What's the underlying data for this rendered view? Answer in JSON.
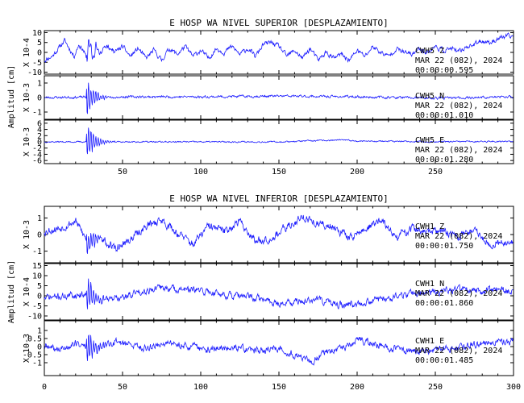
{
  "chart_data": [
    {
      "type": "line",
      "title": "E HOSP WA NIVEL SUPERIOR [DESPLAZAMIENTO]",
      "ylabel": "Amplitud [cm]",
      "xlim": [
        0,
        300
      ],
      "x_ticks": [
        "50",
        "100",
        "150",
        "200",
        "250"
      ],
      "grid": false,
      "channels": [
        {
          "exponent": "X 10-4",
          "y_ticks": [
            "10",
            "5",
            "0",
            "-5",
            "-10"
          ],
          "ylim": [
            -11,
            11
          ],
          "ann_channel": "CWH5   Z",
          "ann_date": "MAR 22 (082), 2024",
          "ann_time": "00:00:00.595",
          "envelope": [
            [
              0,
              -4
            ],
            [
              5,
              -2
            ],
            [
              10,
              3
            ],
            [
              13,
              6
            ],
            [
              16,
              2
            ],
            [
              19,
              -2
            ],
            [
              22,
              4
            ],
            [
              25,
              1
            ],
            [
              27,
              -3
            ],
            [
              29,
              6
            ],
            [
              31,
              -4
            ],
            [
              33,
              3
            ],
            [
              36,
              -1
            ],
            [
              40,
              4
            ],
            [
              45,
              0
            ],
            [
              50,
              3
            ],
            [
              55,
              -2
            ],
            [
              60,
              2
            ],
            [
              65,
              -3
            ],
            [
              70,
              1
            ],
            [
              75,
              -4
            ],
            [
              80,
              2
            ],
            [
              85,
              -1
            ],
            [
              90,
              3
            ],
            [
              95,
              -2
            ],
            [
              100,
              1
            ],
            [
              105,
              -3
            ],
            [
              110,
              2
            ],
            [
              115,
              0
            ],
            [
              120,
              3
            ],
            [
              125,
              -1
            ],
            [
              130,
              2
            ],
            [
              135,
              -2
            ],
            [
              140,
              4
            ],
            [
              145,
              5
            ],
            [
              150,
              3
            ],
            [
              155,
              -2
            ],
            [
              160,
              1
            ],
            [
              165,
              -3
            ],
            [
              170,
              2
            ],
            [
              175,
              -4
            ],
            [
              180,
              0
            ],
            [
              185,
              -3
            ],
            [
              190,
              -1
            ],
            [
              195,
              -4
            ],
            [
              200,
              1
            ],
            [
              205,
              -2
            ],
            [
              210,
              3
            ],
            [
              215,
              0
            ],
            [
              220,
              -2
            ],
            [
              225,
              2
            ],
            [
              230,
              0
            ],
            [
              235,
              -1
            ],
            [
              240,
              2
            ],
            [
              245,
              0
            ],
            [
              250,
              3
            ],
            [
              255,
              1
            ],
            [
              260,
              2
            ],
            [
              265,
              0
            ],
            [
              270,
              3
            ],
            [
              275,
              4
            ],
            [
              280,
              6
            ],
            [
              285,
              5
            ],
            [
              290,
              7
            ],
            [
              295,
              8
            ],
            [
              300,
              8
            ]
          ],
          "noise": 2.2,
          "burst_amp": 4,
          "seed": 11
        },
        {
          "exponent": "X 10-3",
          "y_ticks": [
            "1",
            "0",
            "-1"
          ],
          "ylim": [
            -1.5,
            1.5
          ],
          "ann_channel": "CWH5   N",
          "ann_date": "MAR 22 (082), 2024",
          "ann_time": "00:00:01.010",
          "envelope": [
            [
              0,
              0
            ],
            [
              50,
              0.05
            ],
            [
              100,
              0.05
            ],
            [
              150,
              0.1
            ],
            [
              200,
              0.05
            ],
            [
              250,
              -0.05
            ],
            [
              300,
              0.05
            ]
          ],
          "noise": 0.15,
          "burst_amp": 1.2,
          "seed": 23
        },
        {
          "exponent": "X 10-3",
          "y_ticks": [
            "6",
            "4",
            "2",
            "0",
            "-2",
            "-4",
            "-6"
          ],
          "ylim": [
            -7,
            7
          ],
          "ann_channel": "CWH5   E",
          "ann_date": "MAR 22 (082), 2024",
          "ann_time": "00:00:01.280",
          "envelope": [
            [
              0,
              0
            ],
            [
              50,
              0
            ],
            [
              100,
              0
            ],
            [
              150,
              0
            ],
            [
              190,
              0.6
            ],
            [
              200,
              0.3
            ],
            [
              250,
              0
            ],
            [
              300,
              0.2
            ]
          ],
          "noise": 0.4,
          "burst_amp": 6,
          "seed": 37
        }
      ]
    },
    {
      "type": "line",
      "title": "E HOSP WA NIVEL INFERIOR [DESPLAZAMIENTO]",
      "ylabel": "Amplitud [cm]",
      "xlim": [
        0,
        300
      ],
      "x_ticks": [
        "0",
        "50",
        "100",
        "150",
        "200",
        "250",
        "300"
      ],
      "grid": false,
      "channels": [
        {
          "exponent": "X 10-3",
          "y_ticks": [
            "1",
            "0",
            "-1"
          ],
          "ylim": [
            -1.7,
            1.7
          ],
          "ann_channel": "CWH1   Z",
          "ann_date": "MAR 22 (082), 2024",
          "ann_time": "00:00:01.750",
          "envelope": [
            [
              0,
              0.2
            ],
            [
              10,
              0.4
            ],
            [
              20,
              0.8
            ],
            [
              28,
              -0.5
            ],
            [
              35,
              -0.2
            ],
            [
              45,
              -0.9
            ],
            [
              55,
              -0.3
            ],
            [
              65,
              0.5
            ],
            [
              75,
              0.9
            ],
            [
              85,
              0.1
            ],
            [
              95,
              -0.6
            ],
            [
              105,
              0.5
            ],
            [
              115,
              0.2
            ],
            [
              125,
              0.8
            ],
            [
              135,
              -0.4
            ],
            [
              145,
              -0.2
            ],
            [
              155,
              0.4
            ],
            [
              165,
              1.1
            ],
            [
              175,
              0.6
            ],
            [
              185,
              0.5
            ],
            [
              195,
              -0.2
            ],
            [
              205,
              0.3
            ],
            [
              215,
              0.9
            ],
            [
              225,
              -0.2
            ],
            [
              235,
              0.4
            ],
            [
              245,
              0.1
            ],
            [
              255,
              0.2
            ],
            [
              265,
              -0.1
            ],
            [
              275,
              0.3
            ],
            [
              285,
              -0.6
            ],
            [
              295,
              -0.4
            ],
            [
              300,
              -0.5
            ]
          ],
          "noise": 0.45,
          "burst_amp": 0.8,
          "seed": 53
        },
        {
          "exponent": "X 10-4",
          "y_ticks": [
            "15",
            "10",
            "5",
            "0",
            "-5",
            "-10"
          ],
          "ylim": [
            -12,
            16
          ],
          "ann_channel": "CWH1   N",
          "ann_date": "MAR 22 (082), 2024",
          "ann_time": "00:00:01.860",
          "envelope": [
            [
              0,
              -1
            ],
            [
              15,
              0
            ],
            [
              28,
              1
            ],
            [
              35,
              -2
            ],
            [
              50,
              -1
            ],
            [
              60,
              2
            ],
            [
              75,
              4
            ],
            [
              90,
              3
            ],
            [
              105,
              2
            ],
            [
              120,
              0
            ],
            [
              135,
              -1
            ],
            [
              150,
              -4
            ],
            [
              160,
              -3
            ],
            [
              175,
              -2
            ],
            [
              190,
              -5
            ],
            [
              205,
              -3
            ],
            [
              220,
              -1
            ],
            [
              235,
              1
            ],
            [
              250,
              2
            ],
            [
              265,
              3
            ],
            [
              280,
              2
            ],
            [
              290,
              3
            ],
            [
              300,
              2
            ]
          ],
          "noise": 3.2,
          "burst_amp": 9,
          "seed": 71
        },
        {
          "exponent": "X 10-3",
          "y_ticks": [
            "1",
            "0.5",
            "0",
            "-0.5",
            "-1"
          ],
          "ylim": [
            -1.8,
            1.6
          ],
          "ann_channel": "CWH1   E",
          "ann_date": "MAR 22 (082), 2024",
          "ann_time": "00:00:01.485",
          "envelope": [
            [
              0,
              0
            ],
            [
              10,
              -0.2
            ],
            [
              20,
              0.2
            ],
            [
              30,
              -0.1
            ],
            [
              45,
              0.3
            ],
            [
              55,
              0.1
            ],
            [
              65,
              -0.1
            ],
            [
              75,
              0.2
            ],
            [
              90,
              0.1
            ],
            [
              105,
              -0.2
            ],
            [
              120,
              0
            ],
            [
              135,
              -0.3
            ],
            [
              150,
              -0.1
            ],
            [
              160,
              -0.5
            ],
            [
              170,
              -1.0
            ],
            [
              180,
              -0.3
            ],
            [
              190,
              -0.2
            ],
            [
              200,
              0.4
            ],
            [
              210,
              0.2
            ],
            [
              220,
              -0.1
            ],
            [
              235,
              -0.3
            ],
            [
              250,
              -0.2
            ],
            [
              265,
              0
            ],
            [
              280,
              0.2
            ],
            [
              290,
              0.3
            ],
            [
              300,
              0.3
            ]
          ],
          "noise": 0.4,
          "burst_amp": 1.1,
          "seed": 89
        }
      ]
    }
  ]
}
